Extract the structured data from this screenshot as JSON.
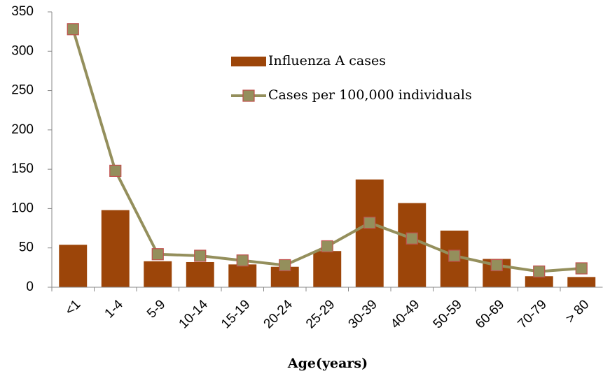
{
  "chart_data": {
    "type": "bar",
    "x_label": "Age(years)",
    "categories": [
      "<1",
      "1-4",
      "5-9",
      "10-14",
      "15-19",
      "20-24",
      "25-29",
      "30-39",
      "40-49",
      "50-59",
      "60-69",
      "70-79",
      "> 80"
    ],
    "series": [
      {
        "name": "Influenza A cases",
        "type": "bar",
        "color": "#9c4509",
        "values": [
          54,
          98,
          33,
          32,
          29,
          26,
          46,
          137,
          107,
          72,
          36,
          14,
          13
        ]
      },
      {
        "name": "Cases per 100,000 individuals",
        "type": "line",
        "color": "#948f5c",
        "values": [
          328,
          148,
          42,
          40,
          34,
          28,
          52,
          82,
          62,
          40,
          28,
          20,
          24
        ]
      }
    ],
    "ylim": [
      0,
      350
    ],
    "yticks": [
      0,
      50,
      100,
      150,
      200,
      250,
      300,
      350
    ],
    "grid": false,
    "legend": "top-center"
  }
}
